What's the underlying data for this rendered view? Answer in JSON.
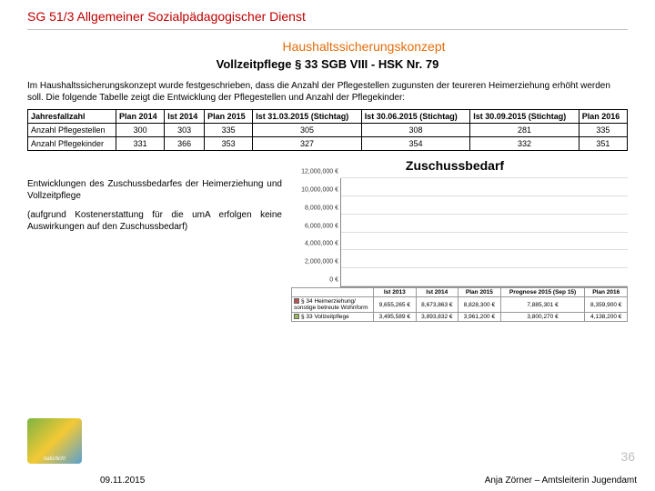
{
  "header": "SG 51/3 Allgemeiner Sozialpädagogischer Dienst",
  "sub1": "Haushaltssicherungskonzept",
  "sub2": "Vollzeitpflege § 33 SGB VIII  -  HSK Nr. 79",
  "intro": "Im Haushaltssicherungskonzept wurde festgeschrieben, dass die Anzahl der Pflegestellen zugunsten der teureren Heimerziehung erhöht werden soll. Die folgende Tabelle zeigt die Entwicklung der Pflegestellen und Anzahl der Pflegekinder:",
  "table": {
    "columns": [
      "Jahresfallzahl",
      "Plan 2014",
      "Ist 2014",
      "Plan 2015",
      "Ist 31.03.2015 (Stichtag)",
      "Ist 30.06.2015 (Stichtag)",
      "Ist 30.09.2015 (Stichtag)",
      "Plan 2016"
    ],
    "rows": [
      {
        "label": "Anzahl Pflegestellen",
        "vals": [
          "300",
          "303",
          "335",
          "305",
          "308",
          "281",
          "335"
        ]
      },
      {
        "label": "Anzahl Pflegekinder",
        "vals": [
          "331",
          "366",
          "353",
          "327",
          "354",
          "332",
          "351"
        ]
      }
    ]
  },
  "zusch_title": "Zuschussbedarf",
  "left_p1": "Entwicklungen des Zuschussbedarfes der Heimerziehung und Vollzeitpflege",
  "left_p2": "(aufgrund Kostenerstattung für die umA erfolgen keine Auswirkungen auf den Zuschussbedarf)",
  "chart": {
    "ymax": 12000000,
    "yticks": [
      "0 €",
      "2,000,000 €",
      "4,000,000 €",
      "6,000,000 €",
      "8,000,000 €",
      "10,000,000 €",
      "12,000,000 €"
    ],
    "categories": [
      "Ist 2013",
      "Ist 2014",
      "Plan 2015",
      "Prognose 2015 (Sep 15)",
      "Plan 2016"
    ],
    "series": [
      {
        "label": "§ 34 Heimerziehung/ sonstige betreute Wohnform",
        "color": "#c0504d",
        "vals": [
          9655265,
          8673863,
          8828300,
          7885301,
          8359900
        ],
        "disp": [
          "9,655,265 €",
          "8,673,863 €",
          "8,828,300 €",
          "7,885,301 €",
          "8,359,900 €"
        ]
      },
      {
        "label": "§ 33 Vollzeitpflege",
        "color": "#9bbb59",
        "vals": [
          3495589,
          3893832,
          3961200,
          3800270,
          4138200
        ],
        "disp": [
          "3,495,589 €",
          "3,893,832 €",
          "3,961,200 €",
          "3,800,270 €",
          "4,138,200 €"
        ]
      }
    ]
  },
  "footer": {
    "date": "09.11.2015",
    "name": "Anja Zörner – Amtsleiterin Jugendamt",
    "page": "36",
    "logo": "natürlich!"
  }
}
